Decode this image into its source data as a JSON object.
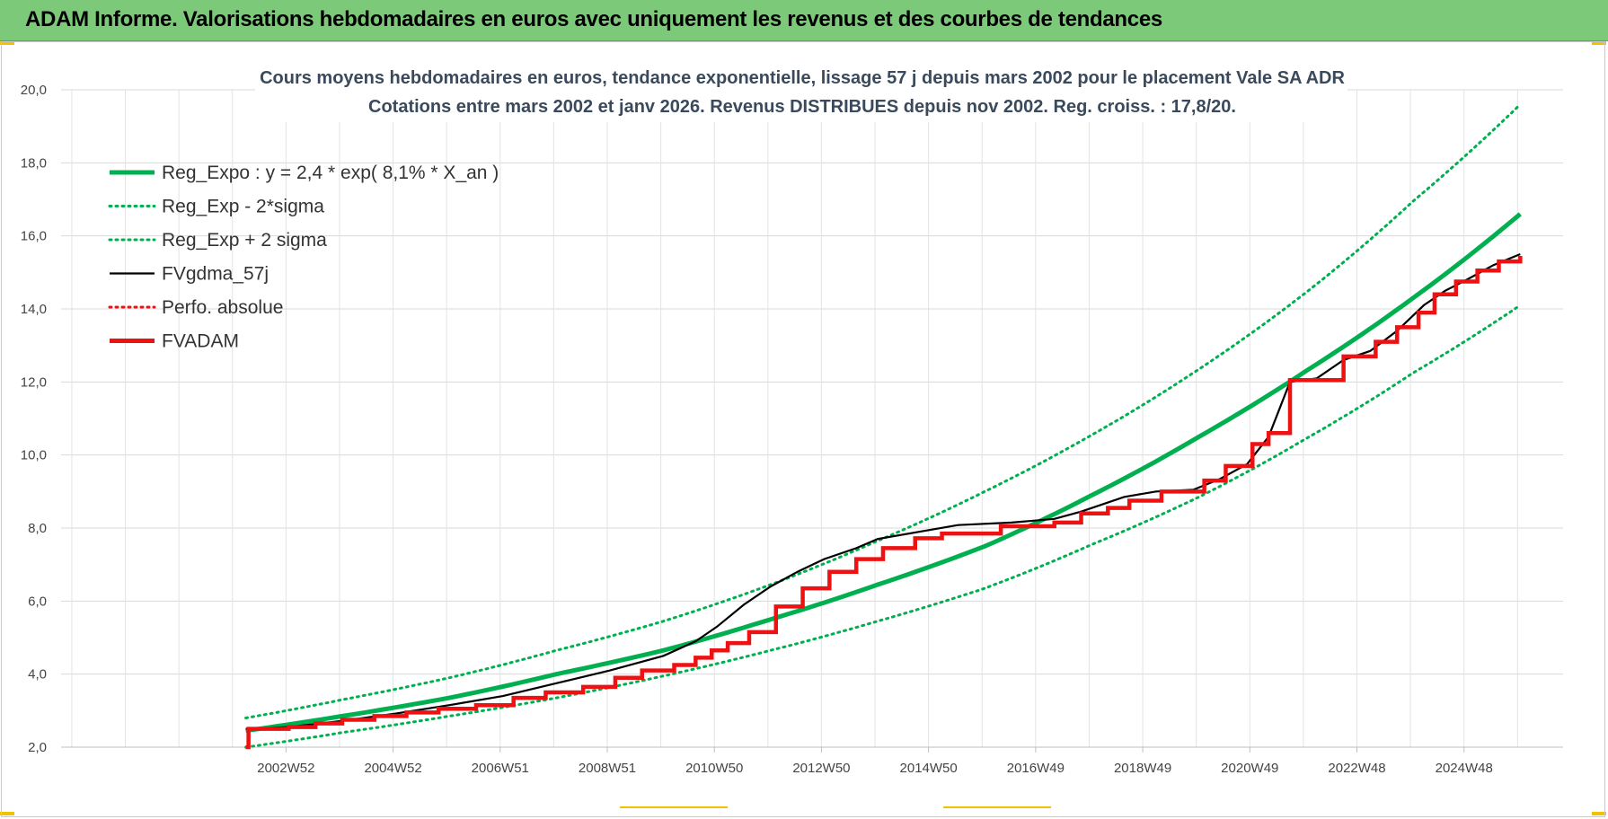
{
  "banner": {
    "title": "ADAM Informe. Valorisations hebdomadaires en euros avec uniquement les revenus et des courbes de tendances"
  },
  "colors": {
    "banner_bg": "#7dc97a",
    "trend": "#00b050",
    "gdma": "#000000",
    "fvadam": "#ee1111",
    "perfo": "#ee1111",
    "corner_accent": "#f2c200"
  },
  "chart_data": {
    "type": "line",
    "title": "Cours moyens hebdomadaires en euros, tendance exponentielle, lissage 57 j depuis mars 2002 pour le placement Vale SA ADR",
    "subtitle": "Cotations entre mars 2002 et janv 2026. Revenus DISTRIBUES depuis nov 2002. Reg. croiss. : 17,8/20.",
    "xlabel": "",
    "ylabel": "",
    "ylim": [
      2.0,
      20.0
    ],
    "y_ticks": [
      "2,0",
      "4,0",
      "6,0",
      "8,0",
      "10,0",
      "12,0",
      "14,0",
      "16,0",
      "18,0",
      "20,0"
    ],
    "xlim": [
      1998.75,
      2026.8
    ],
    "x_ticks": [
      {
        "x": 2002.95,
        "label": "2002W52"
      },
      {
        "x": 2004.95,
        "label": "2004W52"
      },
      {
        "x": 2006.95,
        "label": "2006W51"
      },
      {
        "x": 2008.95,
        "label": "2008W51"
      },
      {
        "x": 2010.95,
        "label": "2010W50"
      },
      {
        "x": 2012.95,
        "label": "2012W50"
      },
      {
        "x": 2014.95,
        "label": "2014W50"
      },
      {
        "x": 2016.95,
        "label": "2016W49"
      },
      {
        "x": 2018.95,
        "label": "2018W49"
      },
      {
        "x": 2020.95,
        "label": "2020W49"
      },
      {
        "x": 2022.95,
        "label": "2022W48"
      },
      {
        "x": 2024.95,
        "label": "2024W48"
      }
    ],
    "grid": true,
    "legend_position": "top-left",
    "series": [
      {
        "name": "Reg_Expo : y = 2,4 * exp( 8,1% *  X_an )",
        "style": "solid-thick",
        "color": "#00b050",
        "x": [
          2002.2,
          2004,
          2006,
          2008,
          2010,
          2012,
          2014,
          2016,
          2018,
          2020,
          2022,
          2024,
          2026
        ],
        "y": [
          2.45,
          2.85,
          3.35,
          4.0,
          4.65,
          5.5,
          6.45,
          7.5,
          8.9,
          10.5,
          12.3,
          14.3,
          16.6
        ]
      },
      {
        "name": "Reg_Exp - 2*sigma",
        "style": "dotted",
        "color": "#00b050",
        "x": [
          2002.2,
          2004,
          2006,
          2008,
          2010,
          2012,
          2014,
          2016,
          2018,
          2020,
          2022,
          2024,
          2026
        ],
        "y": [
          2.0,
          2.4,
          2.85,
          3.35,
          3.95,
          4.65,
          5.45,
          6.35,
          7.55,
          8.85,
          10.45,
          12.25,
          14.1
        ]
      },
      {
        "name": "Reg_Exp + 2 sigma",
        "style": "dotted",
        "color": "#00b050",
        "x": [
          2002.2,
          2004,
          2006,
          2008,
          2010,
          2012,
          2014,
          2016,
          2018,
          2020,
          2022,
          2024,
          2026
        ],
        "y": [
          2.8,
          3.3,
          3.9,
          4.65,
          5.45,
          6.45,
          7.65,
          9.0,
          10.55,
          12.35,
          14.45,
          16.95,
          19.6
        ]
      },
      {
        "name": "FVgdma_57j",
        "style": "solid-thin",
        "color": "#000000",
        "x": [
          2002.2,
          2003,
          2004,
          2005,
          2006,
          2007,
          2008,
          2009,
          2010,
          2010.6,
          2011,
          2011.5,
          2012,
          2012.5,
          2013,
          2013.6,
          2014,
          2014.7,
          2015.5,
          2016.5,
          2017.3,
          2017.8,
          2018.2,
          2018.6,
          2019.2,
          2019.9,
          2020.4,
          2020.9,
          2021.3,
          2021.7,
          2022.2,
          2022.7,
          2023.2,
          2023.7,
          2024.2,
          2024.6,
          2025.0,
          2025.5,
          2026.0
        ],
        "y": [
          2.5,
          2.55,
          2.72,
          2.92,
          3.15,
          3.4,
          3.75,
          4.1,
          4.5,
          4.9,
          5.3,
          5.9,
          6.4,
          6.8,
          7.15,
          7.45,
          7.7,
          7.88,
          8.08,
          8.15,
          8.25,
          8.45,
          8.65,
          8.85,
          9.0,
          9.05,
          9.35,
          9.75,
          10.5,
          12.0,
          12.1,
          12.6,
          12.85,
          13.4,
          14.1,
          14.5,
          14.8,
          15.2,
          15.5
        ]
      },
      {
        "name": "Perfo. absolue",
        "style": "dotted",
        "color": "#ee1111",
        "x": [],
        "y": []
      },
      {
        "name": "FVADAM",
        "style": "step-thick",
        "color": "#ee1111",
        "x": [
          2002.2,
          2002.25,
          2003,
          2003.5,
          2004,
          2004.6,
          2005.2,
          2005.8,
          2006.5,
          2007.2,
          2007.8,
          2008.5,
          2009.1,
          2009.6,
          2010.2,
          2010.6,
          2010.9,
          2011.2,
          2011.6,
          2012.1,
          2012.6,
          2013.1,
          2013.6,
          2014.1,
          2014.7,
          2015.2,
          2016.3,
          2017.3,
          2017.8,
          2018.3,
          2018.7,
          2019.3,
          2020.1,
          2020.5,
          2021.0,
          2021.3,
          2021.7,
          2022.7,
          2023.3,
          2023.7,
          2024.1,
          2024.4,
          2024.8,
          2025.2,
          2025.6,
          2026.0
        ],
        "y": [
          2.0,
          2.5,
          2.55,
          2.65,
          2.75,
          2.85,
          2.95,
          3.05,
          3.15,
          3.35,
          3.5,
          3.65,
          3.9,
          4.1,
          4.25,
          4.45,
          4.65,
          4.85,
          5.15,
          5.85,
          6.35,
          6.8,
          7.15,
          7.45,
          7.72,
          7.85,
          8.05,
          8.15,
          8.4,
          8.55,
          8.75,
          9.0,
          9.3,
          9.7,
          10.3,
          10.6,
          12.05,
          12.7,
          13.1,
          13.5,
          13.9,
          14.4,
          14.75,
          15.05,
          15.3,
          15.45
        ]
      }
    ]
  }
}
